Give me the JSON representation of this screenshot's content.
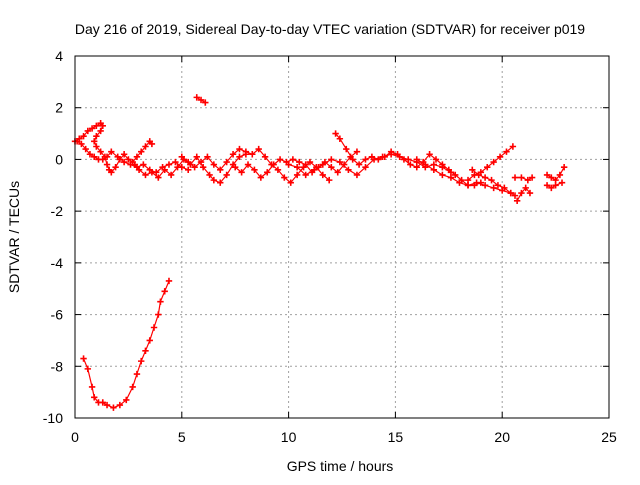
{
  "chart_data": {
    "type": "scatter",
    "title": "Day 216 of 2019, Sidereal Day-to-day VTEC variation (SDTVAR) for receiver p019",
    "xlabel": "GPS time / hours",
    "ylabel": "SDTVAR / TECUs",
    "xlim": [
      0,
      25
    ],
    "ylim": [
      -10,
      4
    ],
    "xticks": [
      0,
      5,
      10,
      15,
      20,
      25
    ],
    "yticks": [
      -10,
      -8,
      -6,
      -4,
      -2,
      0,
      2,
      4
    ],
    "grid": true,
    "series": [
      {
        "name": "SDTVAR",
        "color": "#ff0000",
        "marker": "plus",
        "segments": [
          [
            [
              0.0,
              0.7
            ],
            [
              0.2,
              0.8
            ],
            [
              0.4,
              0.9
            ],
            [
              0.6,
              1.1
            ],
            [
              0.8,
              1.2
            ],
            [
              1.0,
              1.3
            ],
            [
              1.2,
              1.4
            ],
            [
              1.3,
              1.3
            ],
            [
              1.2,
              1.1
            ],
            [
              1.0,
              0.9
            ],
            [
              0.9,
              0.7
            ],
            [
              1.0,
              0.5
            ],
            [
              1.2,
              0.3
            ],
            [
              1.4,
              0.1
            ],
            [
              1.5,
              -0.2
            ],
            [
              1.6,
              -0.4
            ],
            [
              1.7,
              -0.5
            ],
            [
              1.9,
              -0.3
            ],
            [
              2.1,
              0.0
            ],
            [
              2.3,
              0.2
            ],
            [
              2.5,
              0.0
            ],
            [
              2.7,
              -0.1
            ],
            [
              2.9,
              0.1
            ],
            [
              3.1,
              0.3
            ],
            [
              3.3,
              0.5
            ],
            [
              3.5,
              0.7
            ],
            [
              3.6,
              0.6
            ]
          ],
          [
            [
              0.1,
              0.7
            ],
            [
              0.3,
              0.6
            ],
            [
              0.5,
              0.4
            ],
            [
              0.7,
              0.2
            ],
            [
              0.9,
              0.1
            ],
            [
              1.1,
              0.0
            ],
            [
              1.3,
              0.0
            ],
            [
              1.5,
              0.1
            ],
            [
              1.7,
              0.3
            ],
            [
              2.0,
              0.1
            ],
            [
              2.3,
              -0.1
            ],
            [
              2.6,
              -0.2
            ],
            [
              2.9,
              -0.3
            ],
            [
              3.2,
              -0.2
            ],
            [
              3.5,
              -0.4
            ],
            [
              3.8,
              -0.5
            ],
            [
              4.1,
              -0.3
            ],
            [
              4.4,
              -0.2
            ],
            [
              4.7,
              -0.1
            ],
            [
              5.0,
              -0.3
            ],
            [
              5.3,
              -0.4
            ]
          ],
          [
            [
              2.8,
              -0.2
            ],
            [
              3.0,
              -0.4
            ],
            [
              3.3,
              -0.6
            ],
            [
              3.6,
              -0.5
            ],
            [
              3.9,
              -0.7
            ],
            [
              4.2,
              -0.4
            ],
            [
              4.5,
              -0.6
            ],
            [
              4.8,
              -0.3
            ],
            [
              5.1,
              0.0
            ],
            [
              5.4,
              -0.2
            ],
            [
              5.7,
              0.1
            ],
            [
              6.0,
              -0.3
            ],
            [
              6.3,
              -0.6
            ],
            [
              6.5,
              -0.8
            ],
            [
              6.8,
              -0.9
            ],
            [
              7.1,
              -0.6
            ],
            [
              7.4,
              -0.2
            ],
            [
              7.7,
              0.1
            ],
            [
              8.0,
              0.2
            ]
          ],
          [
            [
              5.0,
              0.1
            ],
            [
              5.3,
              -0.1
            ],
            [
              5.6,
              -0.3
            ],
            [
              5.9,
              -0.1
            ],
            [
              6.2,
              0.1
            ],
            [
              6.5,
              -0.2
            ],
            [
              6.8,
              -0.4
            ],
            [
              7.1,
              -0.1
            ],
            [
              7.4,
              0.2
            ],
            [
              7.7,
              0.4
            ],
            [
              8.0,
              0.3
            ],
            [
              8.3,
              0.2
            ],
            [
              8.6,
              0.4
            ],
            [
              8.9,
              0.1
            ],
            [
              9.2,
              -0.2
            ],
            [
              9.5,
              -0.4
            ],
            [
              9.8,
              -0.7
            ],
            [
              10.1,
              -0.9
            ],
            [
              10.4,
              -0.6
            ],
            [
              10.7,
              -0.3
            ],
            [
              11.0,
              -0.1
            ],
            [
              11.3,
              -0.3
            ],
            [
              11.6,
              -0.6
            ],
            [
              11.9,
              -0.8
            ]
          ],
          [
            [
              7.5,
              -0.3
            ],
            [
              7.8,
              -0.5
            ],
            [
              8.1,
              -0.2
            ],
            [
              8.4,
              -0.4
            ],
            [
              8.7,
              -0.7
            ],
            [
              9.0,
              -0.5
            ],
            [
              9.3,
              -0.2
            ],
            [
              9.6,
              0.0
            ],
            [
              9.9,
              -0.1
            ],
            [
              10.2,
              0.0
            ],
            [
              10.5,
              -0.1
            ],
            [
              10.8,
              -0.2
            ],
            [
              11.1,
              -0.5
            ],
            [
              11.4,
              -0.3
            ],
            [
              11.7,
              -0.1
            ],
            [
              12.0,
              -0.3
            ],
            [
              12.3,
              -0.5
            ],
            [
              12.6,
              -0.2
            ],
            [
              12.9,
              0.1
            ],
            [
              13.2,
              0.3
            ]
          ],
          [
            [
              10.0,
              -0.2
            ],
            [
              10.4,
              -0.3
            ],
            [
              10.8,
              -0.6
            ],
            [
              11.2,
              -0.4
            ],
            [
              11.6,
              -0.2
            ],
            [
              12.0,
              0.0
            ],
            [
              12.4,
              -0.1
            ],
            [
              12.8,
              -0.4
            ],
            [
              13.2,
              -0.6
            ],
            [
              13.6,
              -0.3
            ],
            [
              14.0,
              0.0
            ],
            [
              14.4,
              0.1
            ],
            [
              14.8,
              0.2
            ],
            [
              15.2,
              0.1
            ],
            [
              15.6,
              0.0
            ],
            [
              16.0,
              -0.1
            ],
            [
              16.4,
              -0.3
            ],
            [
              16.8,
              -0.2
            ],
            [
              17.2,
              -0.3
            ],
            [
              17.6,
              -0.5
            ]
          ],
          [
            [
              12.2,
              1.0
            ],
            [
              12.4,
              0.8
            ],
            [
              12.7,
              0.4
            ],
            [
              13.0,
              0.0
            ],
            [
              13.3,
              -0.2
            ],
            [
              13.6,
              0.0
            ],
            [
              13.9,
              0.1
            ],
            [
              14.2,
              0.0
            ],
            [
              14.5,
              0.1
            ],
            [
              14.8,
              0.3
            ],
            [
              15.1,
              0.2
            ],
            [
              15.4,
              0.0
            ],
            [
              15.7,
              -0.2
            ],
            [
              16.0,
              -0.3
            ],
            [
              16.3,
              -0.1
            ],
            [
              16.6,
              0.2
            ],
            [
              16.9,
              0.0
            ],
            [
              17.2,
              -0.2
            ],
            [
              17.5,
              -0.4
            ],
            [
              17.8,
              -0.6
            ],
            [
              18.1,
              -0.8
            ],
            [
              18.4,
              -1.0
            ],
            [
              18.7,
              -1.0
            ],
            [
              19.0,
              -0.9
            ]
          ],
          [
            [
              16.0,
              0.0
            ],
            [
              16.4,
              -0.2
            ],
            [
              16.8,
              -0.4
            ],
            [
              17.2,
              -0.6
            ],
            [
              17.6,
              -0.7
            ],
            [
              18.0,
              -0.9
            ],
            [
              18.4,
              -1.0
            ],
            [
              18.8,
              -0.9
            ],
            [
              19.2,
              -1.0
            ],
            [
              19.6,
              -1.1
            ],
            [
              20.0,
              -1.2
            ],
            [
              20.4,
              -1.3
            ]
          ],
          [
            [
              18.4,
              -0.8
            ],
            [
              18.7,
              -0.6
            ],
            [
              19.0,
              -0.5
            ],
            [
              19.3,
              -0.3
            ],
            [
              19.6,
              -0.1
            ],
            [
              19.9,
              0.1
            ],
            [
              20.2,
              0.3
            ],
            [
              20.5,
              0.5
            ]
          ],
          [
            [
              18.6,
              -0.4
            ],
            [
              18.9,
              -0.6
            ],
            [
              19.2,
              -0.7
            ],
            [
              19.5,
              -0.8
            ],
            [
              19.8,
              -1.0
            ],
            [
              20.1,
              -1.1
            ],
            [
              20.4,
              -1.3
            ],
            [
              20.6,
              -1.4
            ]
          ],
          [
            [
              20.7,
              -1.6
            ],
            [
              20.9,
              -1.3
            ],
            [
              21.1,
              -1.1
            ],
            [
              21.3,
              -1.3
            ]
          ],
          [
            [
              20.6,
              -0.7
            ],
            [
              20.9,
              -0.7
            ],
            [
              21.2,
              -0.8
            ],
            [
              21.4,
              -0.7
            ]
          ],
          [
            [
              22.1,
              -0.6
            ],
            [
              22.3,
              -0.7
            ],
            [
              22.5,
              -0.8
            ],
            [
              22.7,
              -0.6
            ],
            [
              22.9,
              -0.3
            ]
          ],
          [
            [
              22.1,
              -1.0
            ],
            [
              22.3,
              -1.1
            ],
            [
              22.5,
              -1.0
            ],
            [
              22.8,
              -0.9
            ]
          ],
          [
            [
              5.7,
              2.4
            ],
            [
              5.9,
              2.3
            ],
            [
              6.1,
              2.2
            ]
          ],
          [
            [
              0.4,
              -7.7
            ],
            [
              0.6,
              -8.1
            ],
            [
              0.8,
              -8.8
            ],
            [
              0.9,
              -9.2
            ],
            [
              1.1,
              -9.4
            ],
            [
              1.3,
              -9.4
            ],
            [
              1.5,
              -9.5
            ],
            [
              1.8,
              -9.6
            ],
            [
              2.1,
              -9.5
            ],
            [
              2.4,
              -9.3
            ],
            [
              2.7,
              -8.8
            ],
            [
              2.9,
              -8.3
            ],
            [
              3.1,
              -7.8
            ],
            [
              3.3,
              -7.4
            ],
            [
              3.5,
              -7.0
            ],
            [
              3.7,
              -6.5
            ],
            [
              3.9,
              -6.0
            ],
            [
              4.0,
              -5.5
            ],
            [
              4.2,
              -5.1
            ],
            [
              4.4,
              -4.7
            ]
          ]
        ]
      }
    ]
  }
}
